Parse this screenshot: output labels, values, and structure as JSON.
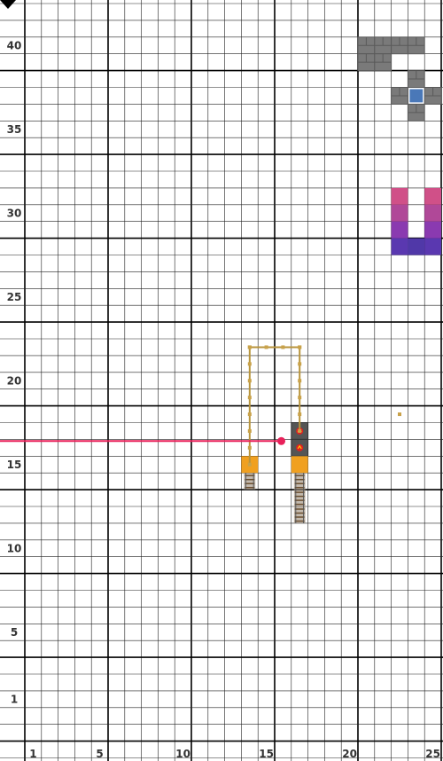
{
  "axes": {
    "x_labels": [
      {
        "text": "1",
        "col": 1
      },
      {
        "text": "5",
        "col": 5
      },
      {
        "text": "10",
        "col": 10
      },
      {
        "text": "15",
        "col": 15
      },
      {
        "text": "20",
        "col": 20
      },
      {
        "text": "25",
        "col": 25
      }
    ],
    "y_labels": [
      {
        "text": "1",
        "row": 1
      },
      {
        "text": "5",
        "row": 5
      },
      {
        "text": "10",
        "row": 10
      },
      {
        "text": "15",
        "row": 15
      },
      {
        "text": "20",
        "row": 20
      },
      {
        "text": "25",
        "row": 25
      },
      {
        "text": "30",
        "row": 30
      },
      {
        "text": "35",
        "row": 35
      },
      {
        "text": "40",
        "row": 40
      }
    ]
  },
  "colors": {
    "grid_minor": "#222222",
    "grid_major": "#000000",
    "wire": "#b8943c",
    "orange_block": "#f0a020",
    "stone": "#7a7a7a",
    "stone_dark": "#5a5a5a",
    "blue_gem": "#4a78b8",
    "arrow_line": "#e8215a",
    "gradient_top": "#d04e86",
    "gradient_mid": "#8a3ab0",
    "gradient_bottom": "#3a3ab0"
  },
  "pointer": {
    "label": "",
    "row": 16.4,
    "col": 15.9
  },
  "tiles": {
    "stone_blocks": [
      [
        21,
        40
      ],
      [
        22,
        40
      ],
      [
        23,
        40
      ],
      [
        24,
        40
      ],
      [
        21,
        39
      ],
      [
        22,
        39
      ],
      [
        24,
        38
      ],
      [
        23,
        37
      ],
      [
        25,
        37
      ],
      [
        24,
        36
      ]
    ],
    "blue_tile": [
      24,
      37
    ],
    "purple_structure": [
      {
        "col": 23,
        "row": 31,
        "color": "#d05088"
      },
      {
        "col": 25,
        "row": 31,
        "color": "#d05088"
      },
      {
        "col": 23,
        "row": 30,
        "color": "#b04898"
      },
      {
        "col": 25,
        "row": 30,
        "color": "#b04898"
      },
      {
        "col": 23,
        "row": 29,
        "color": "#8a3ab0"
      },
      {
        "col": 25,
        "row": 29,
        "color": "#8a3ab0"
      },
      {
        "col": 23,
        "row": 28,
        "color": "#5a38b0"
      },
      {
        "col": 24,
        "row": 28,
        "color": "#5038a8"
      },
      {
        "col": 25,
        "row": 28,
        "color": "#5a38b0"
      }
    ],
    "dark_blocks": [
      [
        17,
        17
      ],
      [
        17,
        16
      ]
    ],
    "orange_blocks": [
      [
        14,
        15
      ],
      [
        17,
        15
      ]
    ],
    "tracks": [
      [
        14,
        14
      ],
      [
        17,
        14
      ],
      [
        17,
        13
      ],
      [
        17,
        12
      ]
    ],
    "wire_path": [
      [
        14,
        15
      ],
      [
        14,
        22
      ],
      [
        17,
        22
      ],
      [
        17,
        17
      ]
    ],
    "lone_dot": [
      23,
      18
    ]
  }
}
